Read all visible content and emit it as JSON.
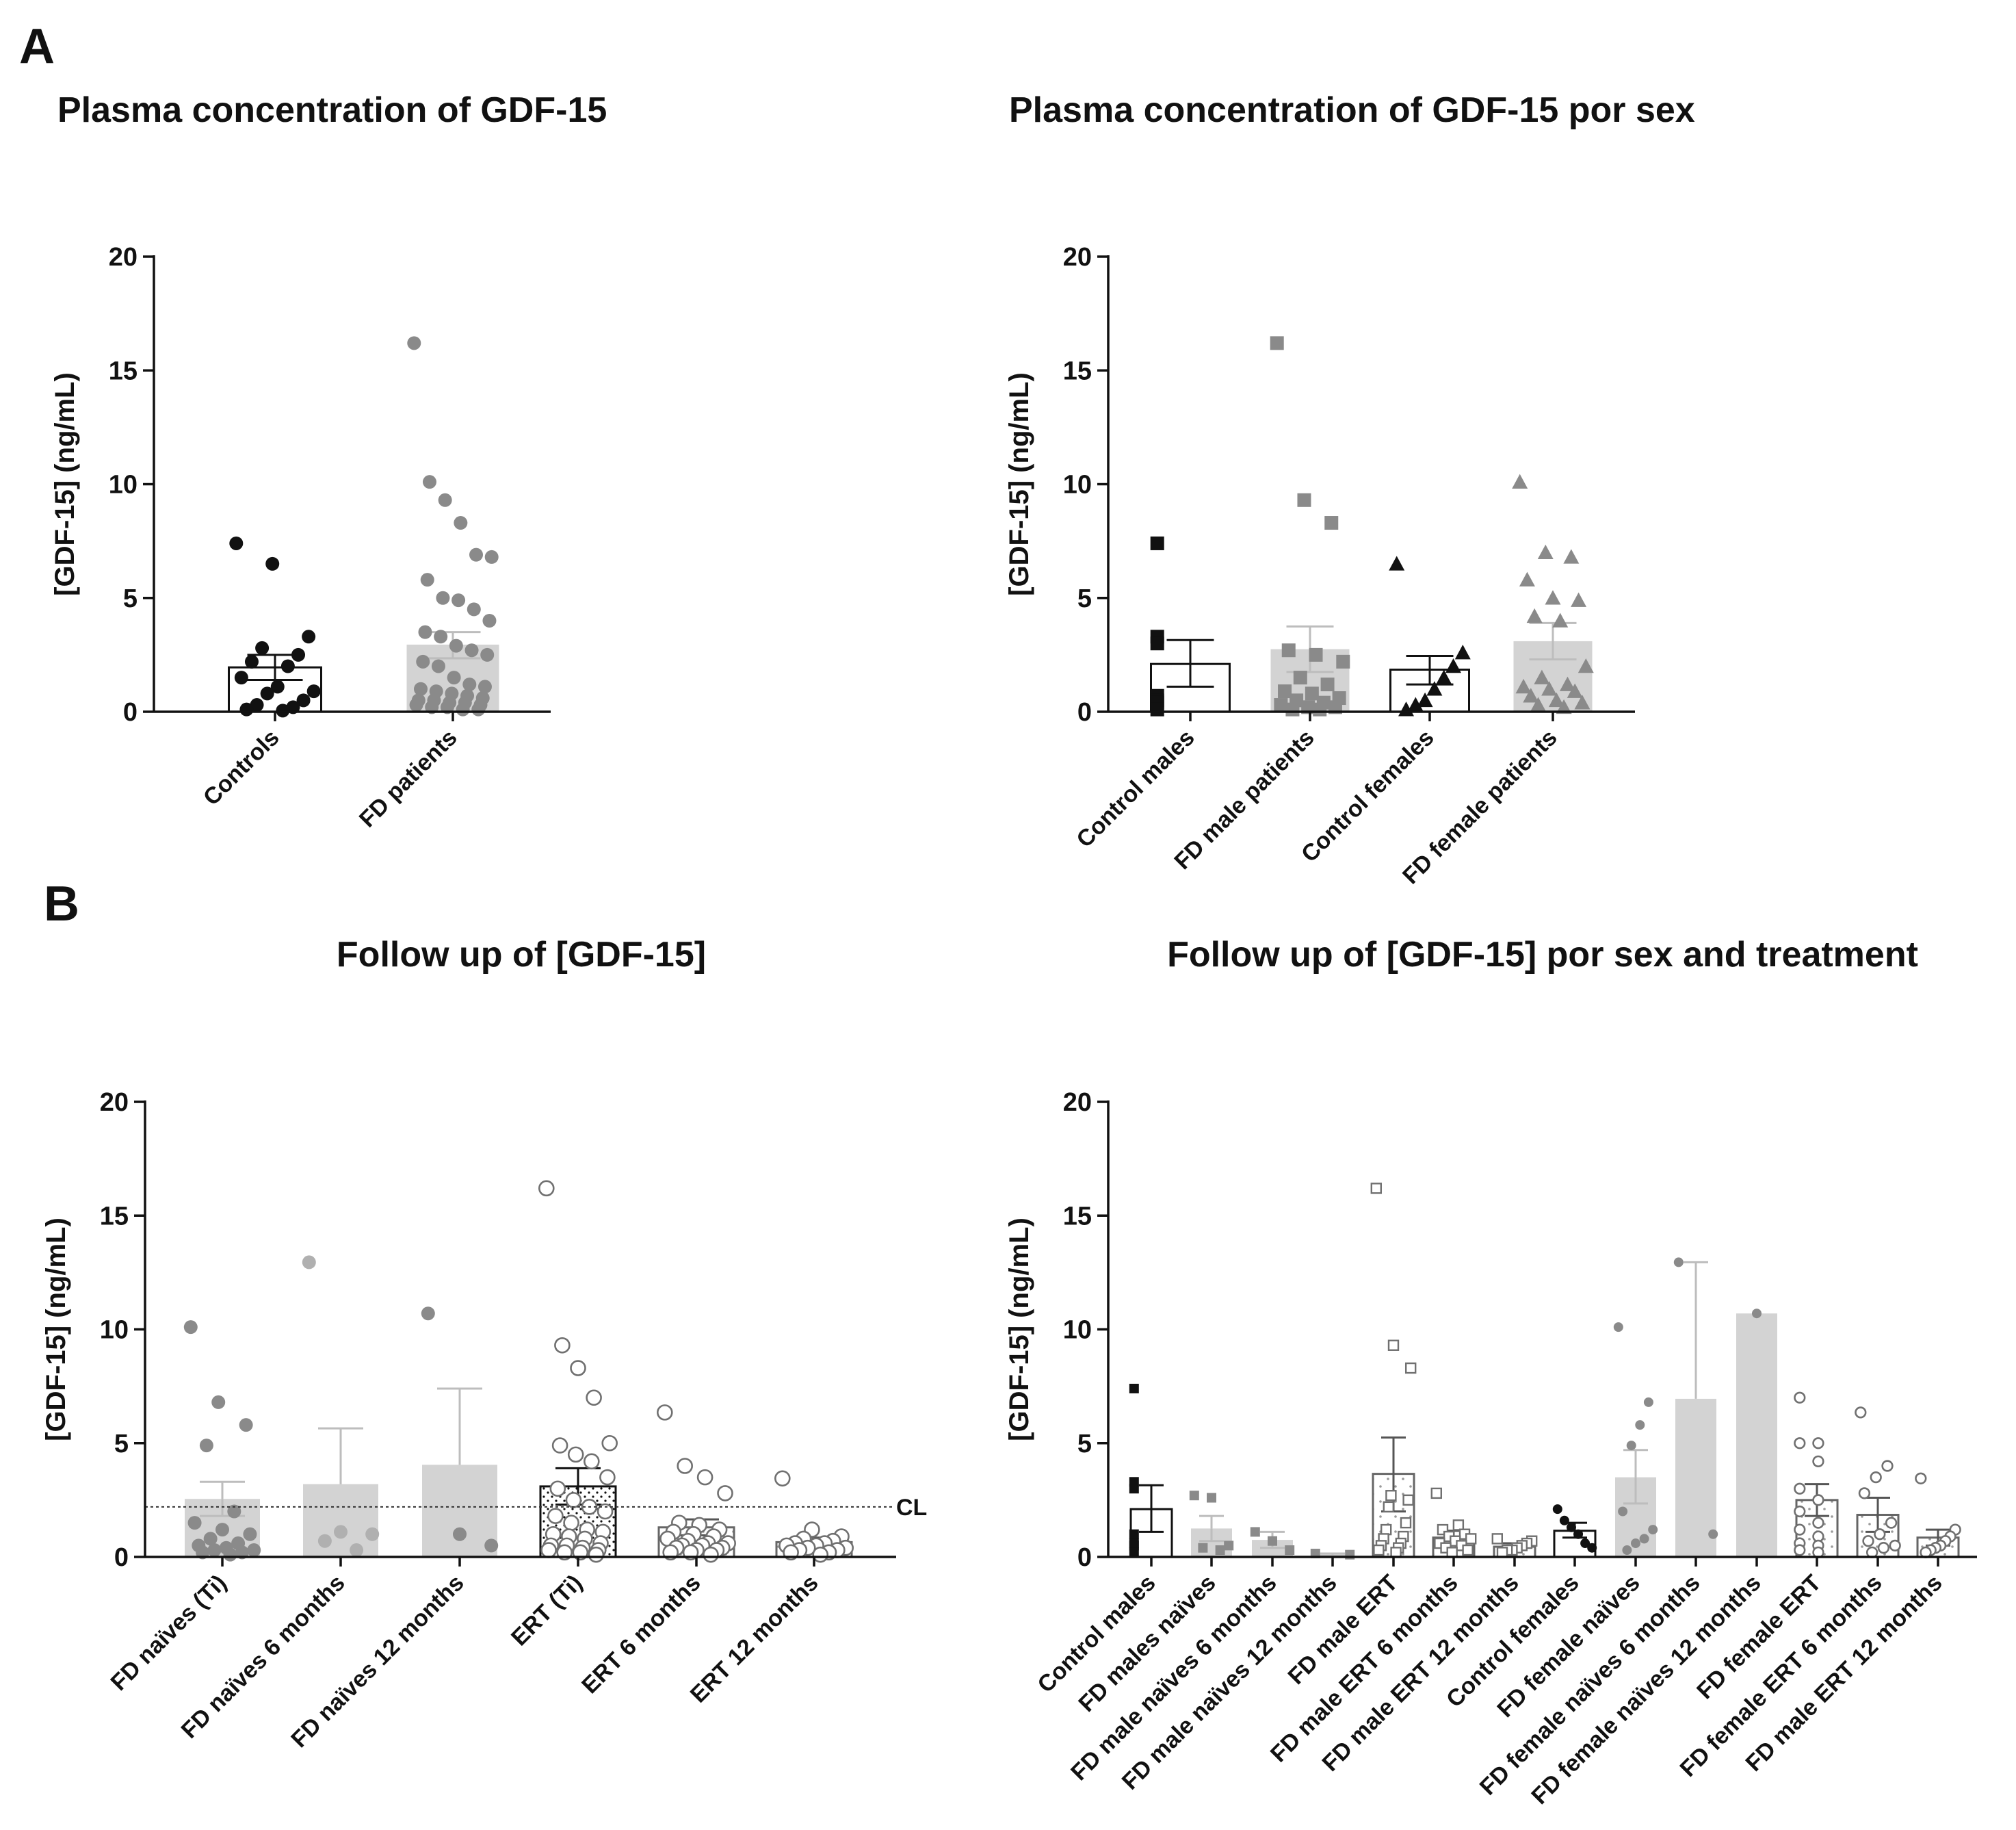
{
  "panel_labels": {
    "A": "A",
    "B": "B"
  },
  "colors": {
    "black": "#111111",
    "gray_point": "#8a8a8a",
    "gray_bar": "#d3d3d3",
    "gray_err": "#bdbdbd",
    "open_point": "#707070"
  },
  "chart_data": [
    {
      "id": "chart1",
      "type": "bar",
      "title": "Plasma concentration of GDF-15",
      "ylabel": "[GDF-15] (ng/mL)",
      "ylim": [
        0,
        20
      ],
      "yticks": [
        0,
        5,
        10,
        15,
        20
      ],
      "categories": [
        "Controls",
        "FD patients"
      ],
      "series": [
        {
          "name": "Controls",
          "mean": 1.95,
          "sem_low": 1.4,
          "sem_high": 2.5,
          "fill": "white",
          "marker": "circle",
          "point_color": "black",
          "points": [
            7.4,
            6.5,
            3.3,
            2.8,
            2.5,
            2.2,
            2.0,
            1.5,
            1.1,
            0.9,
            0.8,
            0.5,
            0.3,
            0.2,
            0.1,
            0.05
          ]
        },
        {
          "name": "FD patients",
          "mean": 2.95,
          "sem_low": 2.35,
          "sem_high": 3.5,
          "fill": "gray",
          "marker": "circle",
          "point_color": "gray",
          "points": [
            16.2,
            10.1,
            9.3,
            8.3,
            6.9,
            6.8,
            5.8,
            5.0,
            4.9,
            4.5,
            4.0,
            3.5,
            3.3,
            2.9,
            2.7,
            2.5,
            2.2,
            2.0,
            1.5,
            1.2,
            1.1,
            1.0,
            0.9,
            0.8,
            0.7,
            0.6,
            0.5,
            0.5,
            0.4,
            0.4,
            0.3,
            0.3,
            0.2,
            0.2,
            0.1,
            0.1
          ]
        }
      ]
    },
    {
      "id": "chart2",
      "type": "bar",
      "title": "Plasma concentration of GDF-15 por sex",
      "ylabel": "[GDF-15] (ng/mL)",
      "ylim": [
        0,
        20
      ],
      "yticks": [
        0,
        5,
        10,
        15,
        20
      ],
      "categories": [
        "Control males",
        "FD male patients",
        "Control females",
        "FD female patients"
      ],
      "series": [
        {
          "name": "Control males",
          "mean": 2.1,
          "sem_low": 1.1,
          "sem_high": 3.15,
          "fill": "white",
          "marker": "square",
          "point_color": "black",
          "points": [
            7.4,
            3.3,
            3.0,
            0.7,
            0.5,
            0.4,
            0.1
          ]
        },
        {
          "name": "FD male patients",
          "mean": 2.75,
          "sem_low": 1.75,
          "sem_high": 3.75,
          "fill": "gray",
          "marker": "square",
          "point_color": "gray",
          "points": [
            16.2,
            9.3,
            8.3,
            2.7,
            2.5,
            2.2,
            1.5,
            1.2,
            0.9,
            0.8,
            0.6,
            0.5,
            0.4,
            0.3,
            0.2,
            0.2,
            0.1,
            0.1
          ]
        },
        {
          "name": "Control females",
          "mean": 1.85,
          "sem_low": 1.2,
          "sem_high": 2.45,
          "fill": "white",
          "marker": "triangle",
          "point_color": "black",
          "points": [
            6.5,
            2.6,
            2.0,
            1.5,
            1.0,
            0.5,
            0.3,
            0.1
          ]
        },
        {
          "name": "FD female patients",
          "mean": 3.1,
          "sem_low": 2.3,
          "sem_high": 3.9,
          "fill": "gray",
          "marker": "triangle",
          "point_color": "gray",
          "points": [
            10.1,
            7.0,
            6.8,
            5.8,
            5.0,
            4.9,
            4.2,
            4.0,
            2.0,
            1.5,
            1.2,
            1.1,
            1.0,
            0.9,
            0.7,
            0.5,
            0.4,
            0.3,
            0.2
          ]
        }
      ]
    },
    {
      "id": "chart3",
      "type": "bar",
      "title": "Follow up of [GDF-15]",
      "ylabel": "[GDF-15] (ng/mL)",
      "ylim": [
        0,
        20
      ],
      "yticks": [
        0,
        5,
        10,
        15,
        20
      ],
      "reference_line": {
        "value": 2.2,
        "label": "CL"
      },
      "categories": [
        "FD naïves (Ti)",
        "FD naïves 6 months",
        "FD naïves 12 months",
        "ERT (Ti)",
        "ERT 6 months",
        "ERT 12 months"
      ],
      "series": [
        {
          "name": "FD naïves (Ti)",
          "mean": 2.55,
          "sem_low": 1.8,
          "sem_high": 3.3,
          "fill": "gray",
          "marker": "circle",
          "point_color": "gray",
          "points": [
            10.1,
            6.8,
            5.8,
            4.9,
            2.0,
            1.5,
            1.2,
            1.0,
            0.8,
            0.6,
            0.5,
            0.4,
            0.3,
            0.3,
            0.2,
            0.2,
            0.1
          ]
        },
        {
          "name": "FD naïves 6 months",
          "mean": 3.2,
          "sem_low": 3.2,
          "sem_high": 5.65,
          "fill": "gray",
          "marker": "circle",
          "point_color": "lightgray",
          "points": [
            12.95,
            1.1,
            1.0,
            0.7,
            0.3
          ]
        },
        {
          "name": "FD naïves 12 months",
          "mean": 4.05,
          "sem_low": 4.05,
          "sem_high": 7.4,
          "fill": "gray",
          "marker": "circle",
          "point_color": "gray",
          "points": [
            10.7,
            1.0,
            0.5
          ]
        },
        {
          "name": "ERT (Ti)",
          "mean": 3.1,
          "sem_low": 2.3,
          "sem_high": 3.9,
          "fill": "dots-dense",
          "marker": "open-circle",
          "point_color": "open",
          "points": [
            16.2,
            9.3,
            8.3,
            7.0,
            5.0,
            4.9,
            4.5,
            4.2,
            3.5,
            3.0,
            2.5,
            2.2,
            2.0,
            1.8,
            1.5,
            1.2,
            1.1,
            1.0,
            0.9,
            0.8,
            0.6,
            0.5,
            0.5,
            0.4,
            0.3,
            0.3,
            0.2,
            0.2,
            0.1
          ]
        },
        {
          "name": "ERT 6 months",
          "mean": 1.3,
          "sem_low": 0.95,
          "sem_high": 1.65,
          "fill": "dots-sparse",
          "marker": "open-circle",
          "point_color": "open",
          "points": [
            6.35,
            4.0,
            3.5,
            2.8,
            1.5,
            1.4,
            1.2,
            1.1,
            1.0,
            0.9,
            0.8,
            0.7,
            0.6,
            0.6,
            0.5,
            0.5,
            0.4,
            0.4,
            0.3,
            0.3,
            0.2,
            0.2,
            0.1
          ]
        },
        {
          "name": "ERT 12 months",
          "mean": 0.65,
          "sem_low": 0.45,
          "sem_high": 0.85,
          "fill": "dots-sparse",
          "marker": "open-circle",
          "point_color": "open",
          "points": [
            3.45,
            1.2,
            0.9,
            0.8,
            0.7,
            0.6,
            0.6,
            0.5,
            0.5,
            0.4,
            0.4,
            0.3,
            0.3,
            0.2,
            0.2,
            0.1
          ]
        }
      ]
    },
    {
      "id": "chart4",
      "type": "bar",
      "title": "Follow up of [GDF-15] por sex and treatment",
      "ylabel": "[GDF-15] (ng/mL)",
      "ylim": [
        0,
        20
      ],
      "yticks": [
        0,
        5,
        10,
        15,
        20
      ],
      "categories": [
        "Control males",
        "FD males naïves",
        "FD male naïves 6 months",
        "FD male naïves 12 months",
        "FD male ERT",
        "FD male ERT 6 months",
        "FD male ERT 12 months",
        "Control females",
        "FD female naïves",
        "FD female naïves 6 months",
        "FD female naïves 12 months",
        "FD female ERT",
        "FD female ERT 6 months",
        "FD male ERT 12 months"
      ],
      "series": [
        {
          "name": "Control males",
          "mean": 2.1,
          "sem_low": 1.1,
          "sem_high": 3.15,
          "fill": "white",
          "marker": "square",
          "point_color": "black",
          "points": [
            7.4,
            3.3,
            3.0,
            1.0,
            0.6,
            0.5,
            0.2
          ]
        },
        {
          "name": "FD males naïves",
          "mean": 1.25,
          "sem_low": 0.7,
          "sem_high": 1.8,
          "fill": "gray",
          "marker": "square",
          "point_color": "gray",
          "points": [
            2.7,
            2.6,
            0.5,
            0.4,
            0.3
          ]
        },
        {
          "name": "FD male naïves 6 months",
          "mean": 0.75,
          "sem_low": 0.4,
          "sem_high": 1.1,
          "fill": "gray",
          "marker": "square",
          "point_color": "gray",
          "points": [
            1.1,
            0.7,
            0.3
          ]
        },
        {
          "name": "FD male naïves 12 months",
          "mean": 0.1,
          "sem_low": 0.05,
          "sem_high": 0.15,
          "fill": "gray",
          "marker": "square",
          "point_color": "gray",
          "points": [
            0.15,
            0.1
          ]
        },
        {
          "name": "FD male ERT",
          "mean": 3.65,
          "sem_low": 2.0,
          "sem_high": 5.25,
          "fill": "dots-sparse",
          "marker": "open-square",
          "point_color": "open",
          "points": [
            16.2,
            9.3,
            8.3,
            2.7,
            2.5,
            2.2,
            1.5,
            1.2,
            0.9,
            0.8,
            0.6,
            0.5,
            0.4,
            0.3,
            0.2
          ]
        },
        {
          "name": "FD male ERT 6 months",
          "mean": 0.85,
          "sem_low": 0.55,
          "sem_high": 1.15,
          "fill": "dots-sparse",
          "marker": "open-square",
          "point_color": "open",
          "points": [
            2.8,
            1.4,
            1.2,
            1.0,
            0.9,
            0.8,
            0.7,
            0.6,
            0.5,
            0.4,
            0.3,
            0.2
          ]
        },
        {
          "name": "FD male ERT 12 months",
          "mean": 0.45,
          "sem_low": 0.35,
          "sem_high": 0.6,
          "fill": "dots-sparse",
          "marker": "open-square",
          "point_color": "open",
          "points": [
            0.8,
            0.7,
            0.6,
            0.5,
            0.4,
            0.3,
            0.3,
            0.2
          ]
        },
        {
          "name": "Control females",
          "mean": 1.15,
          "sem_low": 0.85,
          "sem_high": 1.5,
          "fill": "white",
          "marker": "circle",
          "point_color": "black",
          "points": [
            2.1,
            1.6,
            1.3,
            1.0,
            0.6,
            0.4
          ]
        },
        {
          "name": "FD female naïves",
          "mean": 3.5,
          "sem_low": 2.35,
          "sem_high": 4.7,
          "fill": "gray",
          "marker": "circle",
          "point_color": "gray",
          "points": [
            10.1,
            6.8,
            5.8,
            4.9,
            2.0,
            1.2,
            0.8,
            0.6,
            0.3
          ]
        },
        {
          "name": "FD female naïves 6 months",
          "mean": 6.95,
          "sem_low": 6.95,
          "sem_high": 12.95,
          "fill": "gray",
          "marker": "circle",
          "point_color": "gray",
          "points": [
            12.95,
            1.0
          ]
        },
        {
          "name": "FD female naïves 12 months",
          "mean": 10.7,
          "sem_low": 10.7,
          "sem_high": 10.7,
          "fill": "gray",
          "marker": "circle",
          "point_color": "gray",
          "points": [
            10.7
          ]
        },
        {
          "name": "FD female ERT",
          "mean": 2.5,
          "sem_low": 1.8,
          "sem_high": 3.2,
          "fill": "dots-sparse",
          "marker": "open-circle",
          "point_color": "open",
          "points": [
            7.0,
            5.0,
            5.0,
            4.2,
            3.0,
            2.5,
            2.0,
            1.5,
            1.2,
            0.9,
            0.6,
            0.5,
            0.3,
            0.2
          ]
        },
        {
          "name": "FD female ERT 6 months",
          "mean": 1.85,
          "sem_low": 1.1,
          "sem_high": 2.6,
          "fill": "dots-sparse",
          "marker": "open-circle",
          "point_color": "open",
          "points": [
            6.35,
            4.0,
            3.5,
            2.8,
            1.5,
            1.0,
            0.7,
            0.5,
            0.4,
            0.2
          ]
        },
        {
          "name": "FD male ERT 12 months",
          "mean": 0.85,
          "sem_low": 0.5,
          "sem_high": 1.2,
          "fill": "dots-sparse",
          "marker": "open-circle",
          "point_color": "open",
          "points": [
            3.45,
            1.2,
            0.9,
            0.7,
            0.5,
            0.4,
            0.3,
            0.2
          ]
        }
      ]
    }
  ]
}
